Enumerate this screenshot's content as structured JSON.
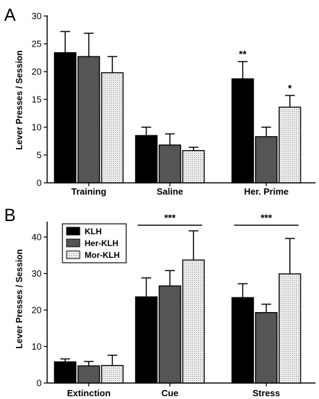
{
  "chart_data": [
    {
      "panel_letter": "A",
      "type": "bar",
      "ylabel": "Lever Presses / Session",
      "xlabel": "",
      "ylim": [
        0,
        30
      ],
      "yticks": [
        0,
        5,
        10,
        15,
        20,
        25,
        30
      ],
      "categories": [
        "Training",
        "Saline",
        "Her. Prime"
      ],
      "series": [
        {
          "name": "KLH",
          "color": "#000000",
          "pattern": "solid",
          "values": [
            23.4,
            8.5,
            18.7
          ],
          "errors": [
            3.8,
            1.5,
            3.1
          ]
        },
        {
          "name": "Her-KLH",
          "color": "#555555",
          "pattern": "solid",
          "values": [
            22.7,
            6.8,
            8.3
          ],
          "errors": [
            4.2,
            2.0,
            1.7
          ]
        },
        {
          "name": "Mor-KLH",
          "color": "#e8e8e8",
          "pattern": "dots",
          "values": [
            19.8,
            5.8,
            13.6
          ],
          "errors": [
            2.9,
            0.6,
            2.1
          ]
        }
      ],
      "annotations": [
        {
          "text": "**",
          "category": 2,
          "series": 0
        },
        {
          "text": "*",
          "category": 2,
          "series": 2
        }
      ],
      "grid": false
    },
    {
      "panel_letter": "B",
      "type": "bar",
      "ylabel": "Lever Presses / Session",
      "xlabel": "",
      "ylim": [
        0,
        44
      ],
      "yticks": [
        0,
        10,
        20,
        30,
        40
      ],
      "categories": [
        "Extinction",
        "Cue",
        "Stress"
      ],
      "series": [
        {
          "name": "KLH",
          "color": "#000000",
          "pattern": "solid",
          "values": [
            5.8,
            23.6,
            23.4
          ],
          "errors": [
            0.8,
            5.2,
            3.8
          ]
        },
        {
          "name": "Her-KLH",
          "color": "#555555",
          "pattern": "solid",
          "values": [
            4.7,
            26.6,
            19.3
          ],
          "errors": [
            1.2,
            4.2,
            2.3
          ]
        },
        {
          "name": "Mor-KLH",
          "color": "#e8e8e8",
          "pattern": "dots",
          "values": [
            4.8,
            33.7,
            29.9
          ],
          "errors": [
            2.8,
            8.0,
            9.7
          ]
        }
      ],
      "annotations": [
        {
          "text": "***",
          "category": 1,
          "type": "bracket"
        },
        {
          "text": "***",
          "category": 2,
          "type": "bracket"
        }
      ],
      "legend": {
        "position": "top-left",
        "entries": [
          "KLH",
          "Her-KLH",
          "Mor-KLH"
        ]
      },
      "grid": false
    }
  ]
}
